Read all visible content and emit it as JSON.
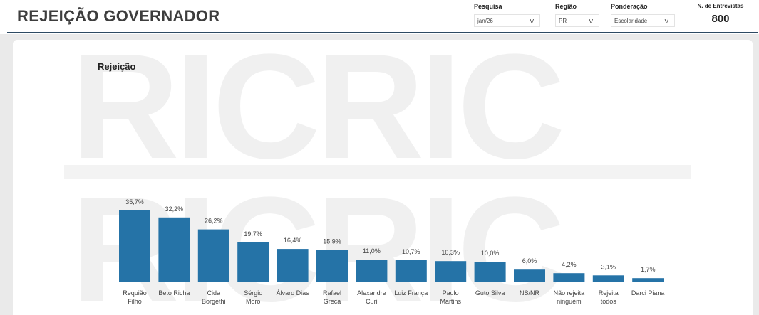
{
  "header": {
    "title": "REJEIÇÃO GOVERNADOR",
    "filters": [
      {
        "label": "Pesquisa",
        "value": "jan/26"
      },
      {
        "label": "Região",
        "value": "PR"
      },
      {
        "label": "Ponderação",
        "value": "Escolaridade"
      }
    ],
    "interviews": {
      "label": "N. de Entrevistas",
      "value": "800"
    },
    "dropdown_chevron": "V"
  },
  "watermark": {
    "text": "RICRIC"
  },
  "chart_data": {
    "type": "bar",
    "title": "Rejeição",
    "categories": [
      [
        "Requião",
        "Filho"
      ],
      [
        "Beto Richa"
      ],
      [
        "Cida",
        "Borgethi"
      ],
      [
        "Sérgio",
        "Moro"
      ],
      [
        "Álvaro Dias"
      ],
      [
        "Rafael",
        "Greca"
      ],
      [
        "Alexandre",
        "Curi"
      ],
      [
        "Luiz França"
      ],
      [
        "Paulo",
        "Martins"
      ],
      [
        "Guto Silva"
      ],
      [
        "NS/NR"
      ],
      [
        "Não rejeita",
        "ninguém"
      ],
      [
        "Rejeita",
        "todos"
      ],
      [
        "Darci Piana"
      ]
    ],
    "values": [
      35.7,
      32.2,
      26.2,
      19.7,
      16.4,
      15.9,
      11.0,
      10.7,
      10.3,
      10.0,
      6.0,
      4.2,
      3.1,
      1.7
    ],
    "value_labels": [
      "35,7%",
      "32,2%",
      "26,2%",
      "19,7%",
      "16,4%",
      "15,9%",
      "11,0%",
      "10,7%",
      "10,3%",
      "10,0%",
      "6,0%",
      "4,2%",
      "3,1%",
      "1,7%"
    ],
    "bar_color": "#2573a7"
  }
}
